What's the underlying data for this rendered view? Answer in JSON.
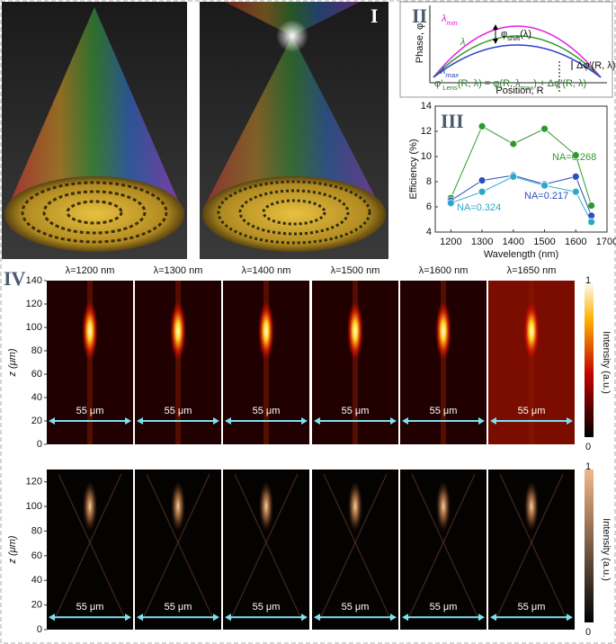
{
  "panel_labels": [
    "I",
    "II",
    "III",
    "IV"
  ],
  "phase_diagram": {
    "y_label": "Phase, φ",
    "x_label": "Position, R",
    "curves": [
      {
        "label": [
          {
            "text": "λ"
          },
          {
            "text": "min",
            "sub": true
          }
        ],
        "color": "#e020e0"
      },
      {
        "label": [
          {
            "text": "λ"
          }
        ],
        "color": "#2e9a2e"
      },
      {
        "label": [
          {
            "text": "λ"
          },
          {
            "text": "max",
            "sub": true
          }
        ],
        "color": "#2a3fcf"
      }
    ],
    "shift_label": [
      {
        "text": "φ"
      },
      {
        "text": "shift",
        "sub": true
      },
      {
        "text": "(λ)"
      }
    ],
    "delta_label": "Δφ′(R, λ)",
    "formula": [
      {
        "text": "φ′"
      },
      {
        "text": "Lens",
        "sub": true
      },
      {
        "text": "(R, λ) = φ(R, λ"
      },
      {
        "text": "max",
        "sub": true
      },
      {
        "text": ") + Δφ′(R, λ)"
      }
    ]
  },
  "chart_data": {
    "type": "line",
    "x_label": "Wavelength (nm)",
    "y_label": "Efficiency (%)",
    "x": [
      1200,
      1300,
      1400,
      1500,
      1600,
      1650
    ],
    "series": [
      {
        "name": "NA=0.268",
        "color": "#2e9a2e",
        "values": [
          6.7,
          12.4,
          11.0,
          12.2,
          10.1,
          6.1
        ]
      },
      {
        "name": "NA=0.217",
        "color": "#2a4fbf",
        "values": [
          6.5,
          8.1,
          8.5,
          7.8,
          8.4,
          5.3
        ]
      },
      {
        "name": "NA=0.324",
        "color": "#2aa8c8",
        "values": [
          6.3,
          7.2,
          8.4,
          7.7,
          7.2,
          4.8
        ]
      }
    ],
    "xlim": [
      1150,
      1700
    ],
    "xticks": [
      1200,
      1300,
      1400,
      1500,
      1600,
      1700
    ],
    "ylim": [
      4,
      14
    ],
    "yticks": [
      4,
      6,
      8,
      10,
      12,
      14
    ]
  },
  "intensity_maps": {
    "wavelength_labels": [
      "λ=1200 nm",
      "λ=1300 nm",
      "λ=1400 nm",
      "λ=1500 nm",
      "λ=1600 nm",
      "λ=1650 nm"
    ],
    "scale_bar": "55 μm",
    "y_label": "z (μm)",
    "colorbar_label": "Intensity (a.u.)",
    "colorbar_ticks": [
      1,
      0
    ],
    "rows": [
      {
        "ylim": [
          0,
          140
        ],
        "yticks": [
          0,
          20,
          40,
          60,
          80,
          100,
          120,
          140
        ]
      },
      {
        "ylim": [
          0,
          130
        ],
        "yticks": [
          0,
          20,
          40,
          60,
          80,
          100,
          120
        ]
      }
    ]
  }
}
